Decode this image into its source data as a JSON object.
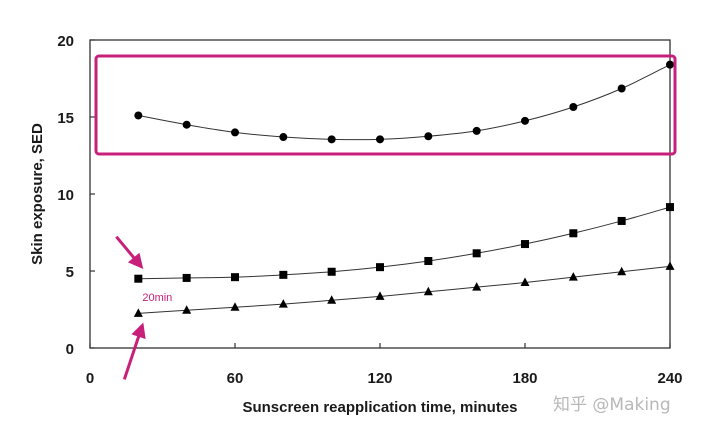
{
  "chart_data": {
    "type": "line",
    "title": "",
    "xlabel": "Sunscreen reapplication time, minutes",
    "ylabel": "Skin exposure, SED",
    "xlim": [
      0,
      240
    ],
    "ylim": [
      0,
      20
    ],
    "xticks": [
      0,
      60,
      120,
      180,
      240
    ],
    "yticks": [
      0,
      5,
      10,
      15,
      20
    ],
    "x": [
      20,
      40,
      60,
      80,
      100,
      120,
      140,
      160,
      180,
      200,
      220,
      240
    ],
    "series": [
      {
        "marker": "circle",
        "values": [
          15.1,
          14.5,
          14.0,
          13.7,
          13.55,
          13.55,
          13.75,
          14.1,
          14.75,
          15.65,
          16.85,
          18.4
        ]
      },
      {
        "marker": "square",
        "values": [
          4.5,
          4.55,
          4.6,
          4.75,
          4.95,
          5.25,
          5.65,
          6.15,
          6.75,
          7.45,
          8.25,
          9.15
        ]
      },
      {
        "marker": "triangle",
        "values": [
          2.25,
          2.45,
          2.65,
          2.85,
          3.1,
          3.35,
          3.65,
          3.95,
          4.25,
          4.6,
          4.95,
          5.3
        ]
      }
    ],
    "grid": false,
    "legend": "none",
    "colors": {
      "line": "#333333",
      "marker": "#000000",
      "highlight": "#c8207a"
    },
    "annotations": [
      {
        "type": "highlight-box",
        "target_series": 0
      },
      {
        "type": "arrow",
        "target": [
          20,
          4.5
        ]
      },
      {
        "type": "arrow",
        "target": [
          20,
          2.25
        ]
      },
      {
        "type": "text",
        "text": "20min",
        "at": [
          20,
          3.3
        ]
      }
    ]
  },
  "watermark": {
    "text": "知乎 @Making"
  }
}
